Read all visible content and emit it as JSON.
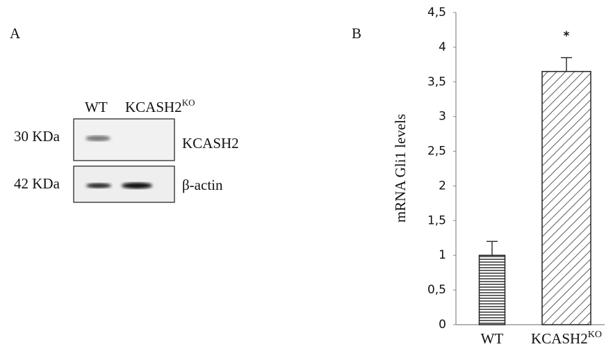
{
  "panel_a": {
    "label": "A",
    "lanes": [
      {
        "text": "WT"
      },
      {
        "text": "KCASH2",
        "sup": "KO"
      }
    ],
    "markers": [
      "30 KDa",
      "42 KDa"
    ],
    "proteins": [
      "KCASH2",
      "β-actin"
    ]
  },
  "chart_data": {
    "type": "bar",
    "label": "B",
    "ylabel": "mRNA Gli1  levels",
    "categories": [
      "WT",
      "KCASH2"
    ],
    "category_superscripts": [
      null,
      "KO"
    ],
    "values": [
      1.0,
      3.65
    ],
    "errors": [
      0.2,
      0.2
    ],
    "annotation": "*",
    "ylim": [
      0,
      4.5
    ],
    "yticks": [
      0,
      {
        "value": 0.5,
        "label": "0,5"
      },
      1,
      {
        "value": 1.5,
        "label": "1,5"
      },
      2,
      {
        "value": 2.5,
        "label": "2,5"
      },
      3,
      {
        "value": 3.5,
        "label": "3,5"
      },
      4,
      {
        "value": 4.5,
        "label": "4,5"
      }
    ],
    "grid": false
  }
}
